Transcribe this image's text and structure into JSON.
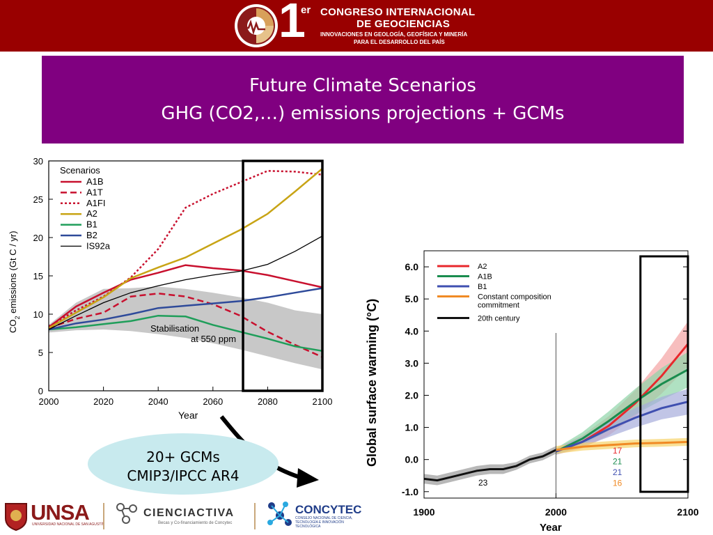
{
  "header": {
    "logo_number": "1",
    "logo_superscript": "er",
    "line1": "CONGRESO INTERNACIONAL",
    "line2": "DE GEOCIENCIAS",
    "line3": "INNOVACIONES EN GEOLOGÍA, GEOFÍSICA Y MINERÍA",
    "line4": "PARA EL DESARROLLO DEL PAÍS",
    "bg_color": "#990000"
  },
  "title": {
    "line1": "Future Climate Scenarios",
    "line2": "GHG (CO2,…) emissions projections + GCMs",
    "bg_color": "#800080"
  },
  "callout": {
    "line1": "20+ GCMs",
    "line2": "CMIP3/IPCC AR4"
  },
  "footer": {
    "unsa": "UNSA",
    "unsa_sub": "UNIVERSIDAD NACIONAL DE SAN AGUSTÍN",
    "cienciactiva": "CIENCIACTIVA",
    "cienciactiva_sub": "Becas y Co-financiamiento de Concytec",
    "concytec": "CONCYTEC",
    "concytec_sub": "CONSEJO NACIONAL DE CIENCIA, TECNOLOGÍA E INNOVACIÓN TECNOLÓGICA"
  },
  "chart_data": [
    {
      "type": "line",
      "title": "",
      "xlabel": "Year",
      "ylabel_main": "CO",
      "ylabel_sub": "2",
      "ylabel_rest": " emissions (Gt C / yr)",
      "xlim": [
        2000,
        2100
      ],
      "ylim": [
        0,
        30
      ],
      "xticks": [
        2000,
        2020,
        2040,
        2060,
        2080,
        2100
      ],
      "yticks": [
        0,
        5,
        10,
        15,
        20,
        25,
        30
      ],
      "legend_title": "Scenarios",
      "legend_position": "top-left",
      "band_label_1": "Stabilisation",
      "band_label_2": "at 550 ppm",
      "highlight_box": [
        2071,
        2100
      ],
      "band": {
        "x": [
          2000,
          2010,
          2020,
          2030,
          2040,
          2050,
          2060,
          2070,
          2080,
          2090,
          2100
        ],
        "upper": [
          8.6,
          11.5,
          13.3,
          13.4,
          13.6,
          13.3,
          12.8,
          12.2,
          11.5,
          10.5,
          10.0
        ],
        "lower": [
          7.6,
          7.9,
          8.0,
          7.8,
          7.4,
          6.9,
          6.2,
          5.4,
          4.5,
          3.6,
          2.8
        ]
      },
      "series": [
        {
          "name": "A1B",
          "color": "#c8102e",
          "dash": "solid",
          "x": [
            2000,
            2010,
            2020,
            2030,
            2040,
            2050,
            2060,
            2070,
            2080,
            2090,
            2100
          ],
          "y": [
            8.3,
            11.0,
            12.8,
            14.5,
            15.4,
            16.4,
            16.0,
            15.7,
            15.1,
            14.3,
            13.5
          ]
        },
        {
          "name": "A1T",
          "color": "#c8102e",
          "dash": "dashed",
          "x": [
            2000,
            2010,
            2020,
            2030,
            2040,
            2050,
            2060,
            2070,
            2080,
            2090,
            2100
          ],
          "y": [
            8.2,
            9.4,
            10.2,
            12.3,
            12.7,
            12.3,
            11.3,
            9.8,
            7.7,
            6.0,
            4.4
          ]
        },
        {
          "name": "A1FI",
          "color": "#c8102e",
          "dash": "dotted",
          "x": [
            2000,
            2010,
            2020,
            2030,
            2040,
            2050,
            2060,
            2070,
            2080,
            2090,
            2100
          ],
          "y": [
            8.4,
            10.5,
            12.3,
            14.8,
            18.5,
            23.9,
            25.7,
            27.2,
            28.7,
            28.6,
            28.2
          ]
        },
        {
          "name": "A2",
          "color": "#c8a415",
          "dash": "solid",
          "x": [
            2000,
            2010,
            2020,
            2030,
            2040,
            2050,
            2060,
            2070,
            2080,
            2090,
            2100
          ],
          "y": [
            8.2,
            10.2,
            12.2,
            14.7,
            16.1,
            17.4,
            19.2,
            21.0,
            23.1,
            26.0,
            29.0
          ]
        },
        {
          "name": "B1",
          "color": "#1f9e5a",
          "dash": "solid",
          "x": [
            2000,
            2010,
            2020,
            2030,
            2040,
            2050,
            2060,
            2070,
            2080,
            2090,
            2100
          ],
          "y": [
            8.0,
            8.3,
            8.7,
            9.1,
            9.8,
            9.7,
            8.6,
            7.7,
            6.8,
            5.8,
            5.2
          ]
        },
        {
          "name": "B2",
          "color": "#2e4a9a",
          "dash": "solid",
          "x": [
            2000,
            2010,
            2020,
            2030,
            2040,
            2050,
            2060,
            2070,
            2080,
            2090,
            2100
          ],
          "y": [
            8.0,
            8.8,
            9.3,
            10.0,
            10.8,
            11.1,
            11.4,
            11.7,
            12.2,
            12.8,
            13.4
          ]
        },
        {
          "name": "IS92a",
          "color": "#000000",
          "dash": "solid",
          "x": [
            2000,
            2010,
            2020,
            2030,
            2040,
            2050,
            2060,
            2070,
            2080,
            2090,
            2100
          ],
          "y": [
            8.0,
            9.8,
            11.5,
            12.8,
            13.7,
            14.5,
            15.1,
            15.6,
            16.5,
            18.2,
            20.2
          ]
        }
      ]
    },
    {
      "type": "line",
      "title": "",
      "xlabel": "Year",
      "ylabel": "Global surface warming (°C)",
      "xlim": [
        1900,
        2100
      ],
      "ylim": [
        -1.2,
        6.5
      ],
      "xticks": [
        1900,
        2000,
        2100
      ],
      "yticks": [
        -1.0,
        0.0,
        1.0,
        2.0,
        3.0,
        4.0,
        5.0,
        6.0
      ],
      "ytick_labels": [
        "-1.0",
        "0.0",
        "1.0",
        "2.0",
        "3.0",
        "4.0",
        "5.0",
        "6.0"
      ],
      "legend_position": "top-left",
      "highlight_box": [
        2064,
        2100
      ],
      "model_count_20th": "23",
      "series": [
        {
          "name": "A2",
          "color": "#e8282c",
          "band_color": "#f4a3a3",
          "count": "17",
          "x": [
            2000,
            2020,
            2040,
            2060,
            2080,
            2100
          ],
          "y": [
            0.25,
            0.55,
            1.05,
            1.75,
            2.6,
            3.6
          ],
          "spread": [
            0.1,
            0.2,
            0.3,
            0.4,
            0.55,
            0.7
          ]
        },
        {
          "name": "A1B",
          "color": "#1a8c4e",
          "band_color": "#8fd4a8",
          "count": "21",
          "x": [
            2000,
            2020,
            2040,
            2060,
            2080,
            2100
          ],
          "y": [
            0.25,
            0.65,
            1.2,
            1.8,
            2.35,
            2.8
          ],
          "spread": [
            0.1,
            0.2,
            0.3,
            0.4,
            0.5,
            0.55
          ]
        },
        {
          "name": "B1",
          "color": "#3f4fb0",
          "band_color": "#a6acdc",
          "count": "21",
          "x": [
            2000,
            2020,
            2040,
            2060,
            2080,
            2100
          ],
          "y": [
            0.25,
            0.55,
            0.95,
            1.3,
            1.6,
            1.8
          ],
          "spread": [
            0.1,
            0.15,
            0.25,
            0.3,
            0.35,
            0.4
          ]
        },
        {
          "name": "Constant composition commitment",
          "legend_lines": [
            "Constant composition",
            "commitment"
          ],
          "color": "#f08a24",
          "band_color": "#f7d36a",
          "count": "16",
          "x": [
            2000,
            2020,
            2040,
            2060,
            2080,
            2100
          ],
          "y": [
            0.3,
            0.4,
            0.45,
            0.5,
            0.52,
            0.55
          ],
          "spread": [
            0.12,
            0.12,
            0.12,
            0.12,
            0.12,
            0.12
          ]
        },
        {
          "name": "20th century",
          "color": "#111111",
          "band_color": "#9a9a9a",
          "x": [
            1900,
            1910,
            1920,
            1930,
            1940,
            1950,
            1960,
            1970,
            1980,
            1990,
            2000
          ],
          "y": [
            -0.6,
            -0.65,
            -0.55,
            -0.45,
            -0.35,
            -0.3,
            -0.3,
            -0.2,
            0.0,
            0.1,
            0.3
          ],
          "spread": [
            0.15,
            0.15,
            0.15,
            0.15,
            0.15,
            0.15,
            0.15,
            0.12,
            0.12,
            0.12,
            0.12
          ]
        }
      ]
    }
  ]
}
